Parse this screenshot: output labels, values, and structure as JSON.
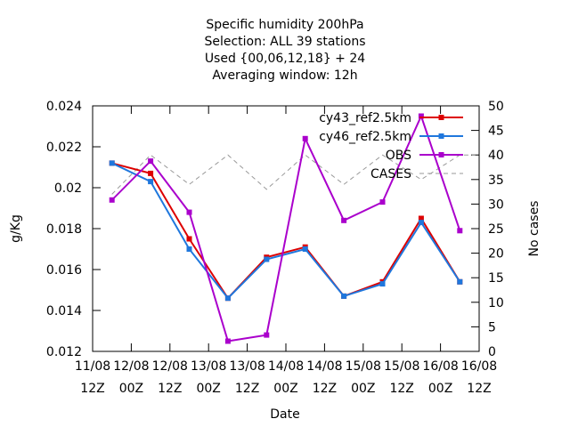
{
  "chart_data": {
    "type": "line",
    "title": [
      "Specific humidity 200hPa",
      "Selection: ALL      39 stations",
      "Used {00,06,12,18} + 24",
      "Averaging window: 12h"
    ],
    "xlabel": "Date",
    "ylabel": "g/Kg",
    "y2label": "No cases",
    "ylim": [
      0.012,
      0.024
    ],
    "y2lim": [
      0,
      50
    ],
    "yticks": [
      "0.012",
      "0.014",
      "0.016",
      "0.018",
      "0.02",
      "0.022",
      "0.024"
    ],
    "y2ticks": [
      "0",
      "5",
      "10",
      "15",
      "20",
      "25",
      "30",
      "35",
      "40",
      "45",
      "50"
    ],
    "xticks": [
      {
        "top": "11/08",
        "bottom": "12Z"
      },
      {
        "top": "12/08",
        "bottom": "00Z"
      },
      {
        "top": "12/08",
        "bottom": "12Z"
      },
      {
        "top": "13/08",
        "bottom": "00Z"
      },
      {
        "top": "13/08",
        "bottom": "12Z"
      },
      {
        "top": "14/08",
        "bottom": "00Z"
      },
      {
        "top": "14/08",
        "bottom": "12Z"
      },
      {
        "top": "15/08",
        "bottom": "00Z"
      },
      {
        "top": "15/08",
        "bottom": "12Z"
      },
      {
        "top": "16/08",
        "bottom": "00Z"
      },
      {
        "top": "16/08",
        "bottom": "12Z"
      }
    ],
    "legend_position": "top-right",
    "series": [
      {
        "name": "cy43_ref2.5km",
        "color": "#dd0000",
        "axis": "y",
        "marker": "square",
        "x": [
          0.5,
          1.5,
          2.5,
          3.5,
          4.5,
          5.5,
          6.5,
          7.5,
          8.5,
          9.5
        ],
        "values": [
          0.0212,
          0.0207,
          0.0175,
          0.0146,
          0.0166,
          0.0171,
          0.0147,
          0.0154,
          0.0185,
          0.0154
        ]
      },
      {
        "name": "cy46_ref2.5km",
        "color": "#1f77dd",
        "axis": "y",
        "marker": "square",
        "x": [
          0.5,
          1.5,
          2.5,
          3.5,
          4.5,
          5.5,
          6.5,
          7.5,
          8.5,
          9.5
        ],
        "values": [
          0.0212,
          0.0203,
          0.017,
          0.0146,
          0.0165,
          0.017,
          0.0147,
          0.0153,
          0.0183,
          0.0154
        ]
      },
      {
        "name": "OBS",
        "color": "#aa00cc",
        "axis": "y",
        "marker": "square",
        "x": [
          0.5,
          1.5,
          2.5,
          3.5,
          4.5,
          5.5,
          6.5,
          7.5,
          8.5,
          9.5
        ],
        "values": [
          0.0194,
          0.0213,
          0.0188,
          0.0125,
          0.0128,
          0.0224,
          0.0184,
          0.0193,
          0.0235,
          0.0179
        ]
      },
      {
        "name": "CASES",
        "color": "#999999",
        "axis": "y2",
        "marker": "none",
        "dashed": true,
        "x": [
          0.5,
          1.5,
          2.5,
          3.5,
          4.5,
          5.5,
          6.5,
          7.5,
          8.5,
          9.5,
          9.9
        ],
        "values": [
          32,
          40,
          34,
          40,
          33,
          40,
          34,
          40,
          35,
          40,
          40
        ]
      }
    ]
  }
}
